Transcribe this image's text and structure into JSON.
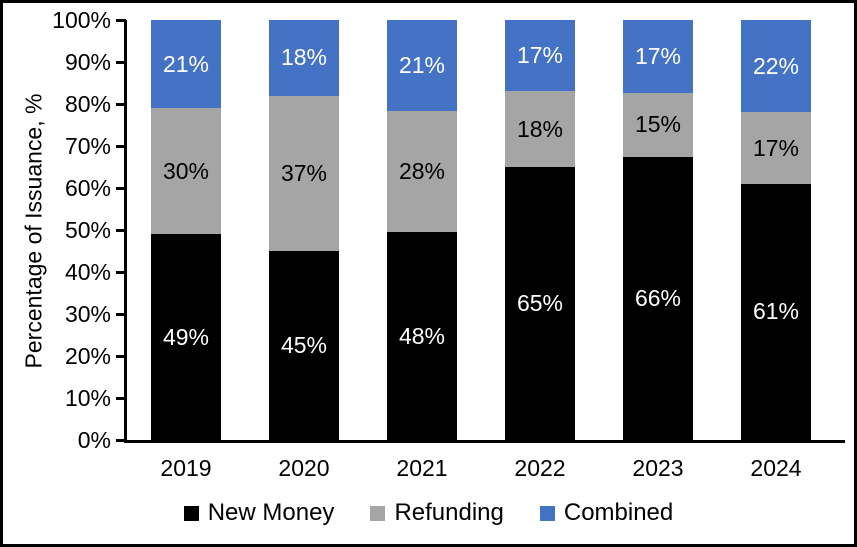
{
  "chart_data": {
    "type": "bar",
    "subtype": "stacked-100-percent",
    "title": "",
    "xlabel": "",
    "ylabel": "Percentage of Issuance, %",
    "categories": [
      "2019",
      "2020",
      "2021",
      "2022",
      "2023",
      "2024"
    ],
    "series": [
      {
        "name": "New Money",
        "color": "#000000",
        "label_color": "#ffffff",
        "values": [
          49,
          45,
          48,
          65,
          66,
          61
        ]
      },
      {
        "name": "Refunding",
        "color": "#A5A5A5",
        "label_color": "#000000",
        "values": [
          30,
          37,
          28,
          18,
          15,
          17
        ]
      },
      {
        "name": "Combined",
        "color": "#4472C4",
        "label_color": "#ffffff",
        "values": [
          21,
          18,
          21,
          17,
          17,
          22
        ]
      }
    ],
    "data_label_suffix": "%",
    "y_ticks": [
      "100%",
      "90%",
      "80%",
      "70%",
      "60%",
      "50%",
      "40%",
      "30%",
      "20%",
      "10%",
      "0%"
    ],
    "ylim": [
      0,
      100
    ],
    "grid": false,
    "legend_position": "bottom",
    "axis_color": "#000000",
    "background_color": "#ffffff"
  }
}
